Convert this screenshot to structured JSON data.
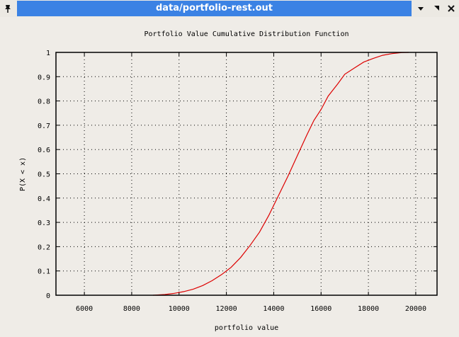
{
  "window": {
    "title": "data/portfolio-rest.out",
    "pin_icon": "pin-icon",
    "menu_icon": "chevron-down-icon",
    "maximize_icon": "maximize-icon",
    "close_icon": "close-icon"
  },
  "chart_data": {
    "type": "line",
    "title": "Portfolio Value Cumulative Distribution Function",
    "xlabel": "portfolio value",
    "ylabel": "P(X < x)",
    "xlim": [
      4800,
      20900
    ],
    "ylim": [
      0,
      1
    ],
    "xticks": [
      6000,
      8000,
      10000,
      12000,
      14000,
      16000,
      18000,
      20000
    ],
    "yticks": [
      0,
      0.1,
      0.2,
      0.3,
      0.4,
      0.5,
      0.6,
      0.7,
      0.8,
      0.9,
      1
    ],
    "ytick_labels": [
      "0",
      "0.1",
      "0.2",
      "0.3",
      "0.4",
      "0.5",
      "0.6",
      "0.7",
      "0.8",
      "0.9",
      "1"
    ],
    "grid": true,
    "line_color": "#dd0000",
    "series": [
      {
        "x": [
          8900,
          9400,
          9800,
          10200,
          10600,
          11000,
          11400,
          11800,
          12200,
          12600,
          13000,
          13400,
          13800,
          14200,
          14600,
          15000,
          15400,
          15700,
          16000,
          16300,
          16700,
          17000,
          17400,
          17800,
          18200,
          18600,
          19000,
          19400,
          19700
        ],
        "y": [
          0.0,
          0.003,
          0.008,
          0.015,
          0.025,
          0.04,
          0.06,
          0.085,
          0.115,
          0.155,
          0.205,
          0.26,
          0.33,
          0.41,
          0.49,
          0.575,
          0.66,
          0.72,
          0.765,
          0.82,
          0.87,
          0.91,
          0.935,
          0.96,
          0.975,
          0.988,
          0.995,
          0.999,
          1.0
        ]
      }
    ]
  }
}
